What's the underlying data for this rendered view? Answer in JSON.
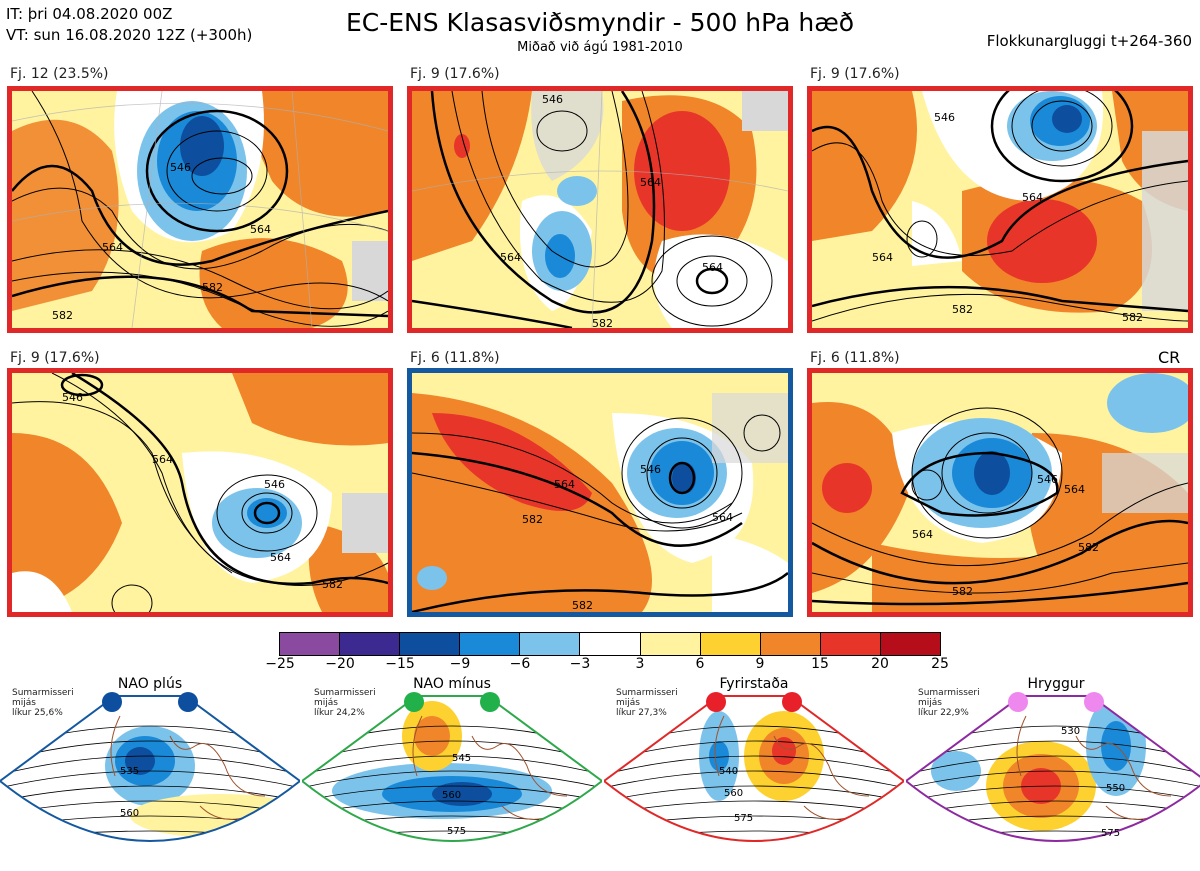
{
  "header": {
    "issue_time": "IT: þri 04.08.2020 00Z",
    "valid_time": "VT: sun 16.08.2020 12Z  (+300h)",
    "title": "EC-ENS Klasasviðsmyndir - 500 hPa hæð",
    "subtitle": "Miðað við ágú 1981-2010",
    "window": "Flokkunargluggi t+264-360"
  },
  "panels": [
    {
      "label": "Fj. 12 (23.5%)",
      "frame_color": "#e02828",
      "contours": [
        "546",
        "564",
        "582",
        "582",
        "564"
      ]
    },
    {
      "label": "Fj. 9 (17.6%)",
      "frame_color": "#e02828",
      "contours": [
        "564",
        "564",
        "582",
        "564",
        "546"
      ]
    },
    {
      "label": "Fj. 9 (17.6%)",
      "frame_color": "#e02828",
      "contours": [
        "546",
        "564",
        "564",
        "582",
        "582"
      ]
    },
    {
      "label": "Fj. 9 (17.6%)",
      "frame_color": "#e02828",
      "contours": [
        "546",
        "564",
        "582",
        "546",
        "564"
      ]
    },
    {
      "label": "Fj. 6 (11.8%)",
      "frame_color": "#1458a0",
      "contours": [
        "564",
        "582",
        "546",
        "564",
        "582"
      ]
    },
    {
      "label": "Fj. 6 (11.8%)",
      "frame_color": "#e02828",
      "contours": [
        "546",
        "564",
        "564",
        "582",
        "582"
      ]
    }
  ],
  "regime_tag": "CR",
  "colorbar": {
    "ticks": [
      "−25",
      "−20",
      "−15",
      "−9",
      "−6",
      "−3",
      "3",
      "6",
      "9",
      "15",
      "20",
      "25"
    ],
    "colors": [
      "#8a4aa0",
      "#3d2a90",
      "#0d4f9e",
      "#1a8ad8",
      "#7cc3ec",
      "#ffffff",
      "#fff3a0",
      "#fdd230",
      "#f0852a",
      "#e8352a",
      "#b50d1a"
    ]
  },
  "climatology": [
    {
      "title": "NAO plús",
      "note": [
        "Sumarmisseri",
        "mijás",
        "líkur 25,6%"
      ],
      "color": "#1458a0",
      "dot_color": "#0d4f9e",
      "contours": [
        "535",
        "560"
      ]
    },
    {
      "title": "NAO mínus",
      "note": [
        "Sumarmisseri",
        "mijás",
        "líkur 24,2%"
      ],
      "color": "#2ea84a",
      "dot_color": "#22b04a",
      "contours": [
        "545",
        "560",
        "575"
      ]
    },
    {
      "title": "Fyrirstaða",
      "note": [
        "Sumarmisseri",
        "mijás",
        "líkur 27,3%"
      ],
      "color": "#e02828",
      "dot_color": "#e8202a",
      "contours": [
        "540",
        "560",
        "575"
      ]
    },
    {
      "title": "Hryggur",
      "note": [
        "Sumarmisseri",
        "mijás",
        "líkur 22,9%"
      ],
      "color": "#8e2aa0",
      "dot_color": "#ee88ee",
      "contours": [
        "530",
        "550",
        "575"
      ]
    }
  ]
}
